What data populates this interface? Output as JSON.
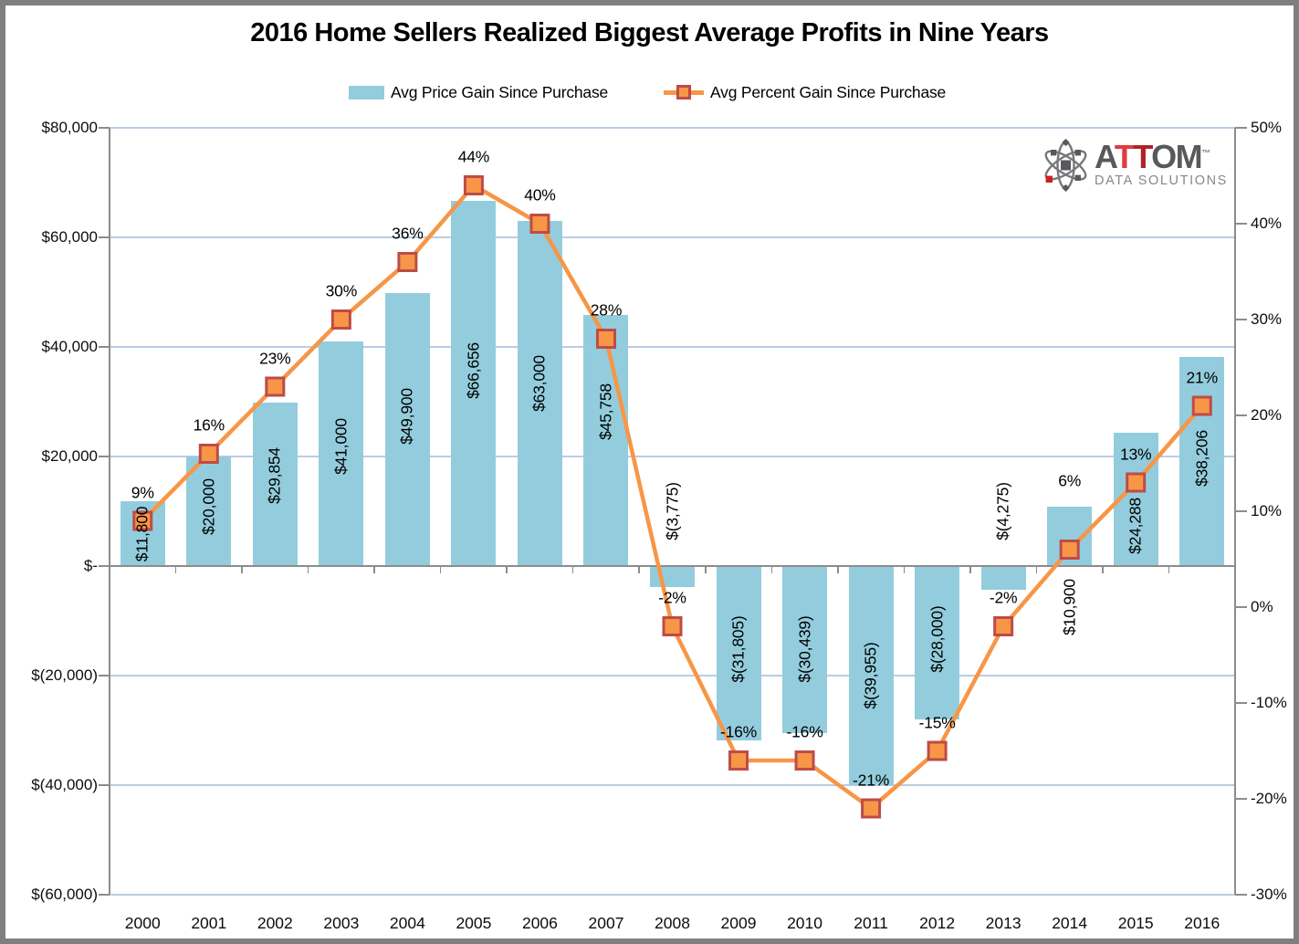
{
  "title": "2016 Home Sellers Realized Biggest Average Profits in Nine Years",
  "legend": {
    "series1_label": "Avg Price Gain Since Purchase",
    "series2_label": "Avg Percent Gain Since Purchase"
  },
  "logo": {
    "letters": [
      "A",
      "T",
      "T",
      "OM"
    ],
    "tm": "™",
    "tagline": "DATA SOLUTIONS"
  },
  "chart_data": {
    "type": "bar",
    "title": "2016 Home Sellers Realized Biggest Average Profits in Nine Years",
    "categories": [
      "2000",
      "2001",
      "2002",
      "2003",
      "2004",
      "2005",
      "2006",
      "2007",
      "2008",
      "2009",
      "2010",
      "2011",
      "2012",
      "2013",
      "2014",
      "2015",
      "2016"
    ],
    "series": [
      {
        "name": "Avg Price Gain Since Purchase",
        "type": "bar",
        "axis": "left",
        "values": [
          11800,
          20000,
          29854,
          41000,
          49900,
          66656,
          63000,
          45758,
          -3775,
          -31805,
          -30439,
          -39955,
          -28000,
          -4275,
          10900,
          24288,
          38206
        ],
        "labels": [
          "$11,800",
          "$20,000",
          "$29,854",
          "$41,000",
          "$49,900",
          "$66,656",
          "$63,000",
          "$45,758",
          "$(3,775)",
          "$(31,805)",
          "$(30,439)",
          "$(39,955)",
          "$(28,000)",
          "$(4,275)",
          "$10,900",
          "$24,288",
          "$38,206"
        ]
      },
      {
        "name": "Avg Percent Gain Since Purchase",
        "type": "line",
        "axis": "right",
        "values": [
          9,
          16,
          23,
          30,
          36,
          44,
          40,
          28,
          -2,
          -16,
          -16,
          -21,
          -15,
          -2,
          6,
          13,
          21
        ],
        "labels": [
          "9%",
          "16%",
          "23%",
          "30%",
          "36%",
          "44%",
          "40%",
          "28%",
          "-2%",
          "-16%",
          "-16%",
          "-21%",
          "-15%",
          "-2%",
          "6%",
          "13%",
          "21%"
        ]
      }
    ],
    "axes": {
      "left": {
        "ticks": [
          "$80,000",
          "$60,000",
          "$40,000",
          "$20,000",
          "$-",
          "$(20,000)",
          "$(40,000)",
          "$(60,000)"
        ],
        "min": -60000,
        "max": 80000,
        "step": 20000
      },
      "right": {
        "ticks": [
          "50%",
          "40%",
          "30%",
          "20%",
          "10%",
          "0%",
          "-10%",
          "-20%",
          "-30%"
        ],
        "min": -30,
        "max": 50,
        "step": 10
      }
    },
    "legend_position": "top",
    "grid": true,
    "colors": {
      "bar": "#93CDDD",
      "line": "#F79646",
      "marker_fill": "#F79646",
      "marker_border": "#BE4B48",
      "gridline": "#B9CDE5",
      "axis": "#8C8C8C"
    }
  }
}
